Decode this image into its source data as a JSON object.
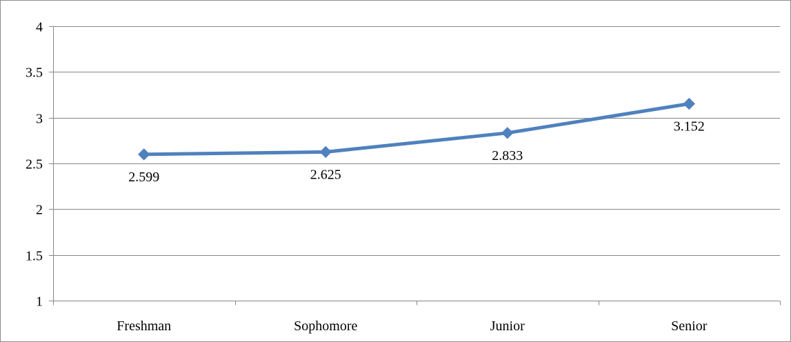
{
  "chart_data": {
    "type": "line",
    "categories": [
      "Freshman",
      "Sophomore",
      "Junior",
      "Senior"
    ],
    "series": [
      {
        "values": [
          2.599,
          2.625,
          2.833,
          3.152
        ],
        "data_labels": [
          "2.599",
          "2.625",
          "2.833",
          "3.152"
        ]
      }
    ],
    "ylim": [
      1,
      4
    ],
    "yticks": [
      "1",
      "1.5",
      "2",
      "2.5",
      "3",
      "3.5",
      "4"
    ],
    "title": "",
    "xlabel": "",
    "ylabel": "",
    "grid": true,
    "legend": "none",
    "colors": {
      "line": "#4f81bd",
      "grid": "#868686",
      "text": "#000000"
    },
    "marker": "diamond"
  }
}
